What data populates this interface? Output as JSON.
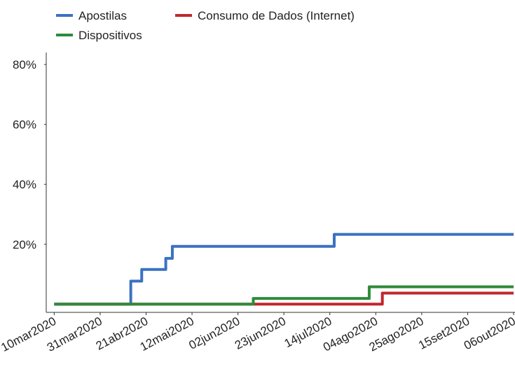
{
  "chart_data": {
    "type": "step-line",
    "series": [
      {
        "name": "Apostilas",
        "color": "#3b71c1",
        "x": [
          "2020-03-10",
          "2020-04-14",
          "2020-04-14",
          "2020-04-19",
          "2020-04-19",
          "2020-04-30",
          "2020-04-30",
          "2020-05-03",
          "2020-05-03",
          "2020-07-16",
          "2020-07-16",
          "2020-10-06"
        ],
        "values": [
          0,
          0,
          7.7,
          7.7,
          11.6,
          11.6,
          15.3,
          15.3,
          19.3,
          19.3,
          23.3,
          23.3
        ]
      },
      {
        "name": "Consumo de Dados (Internet)",
        "color": "#c0272d",
        "x": [
          "2020-03-10",
          "2020-08-07",
          "2020-08-07",
          "2020-10-06"
        ],
        "values": [
          0,
          0,
          3.7,
          3.7
        ]
      },
      {
        "name": "Dispositivos",
        "color": "#2e8b3a",
        "x": [
          "2020-03-10",
          "2020-06-09",
          "2020-06-09",
          "2020-08-01",
          "2020-08-01",
          "2020-10-06"
        ],
        "values": [
          0,
          0,
          1.9,
          1.9,
          5.8,
          5.8
        ]
      }
    ],
    "xlim": [
      "2020-03-07",
      "2020-10-06"
    ],
    "xticks": [
      {
        "value": "2020-03-10",
        "label": "10mar2020"
      },
      {
        "value": "2020-03-31",
        "label": "31mar2020"
      },
      {
        "value": "2020-04-21",
        "label": "21abr2020"
      },
      {
        "value": "2020-05-12",
        "label": "12mai2020"
      },
      {
        "value": "2020-06-02",
        "label": "02jun2020"
      },
      {
        "value": "2020-06-23",
        "label": "23jun2020"
      },
      {
        "value": "2020-07-14",
        "label": "14jul2020"
      },
      {
        "value": "2020-08-04",
        "label": "04ago2020"
      },
      {
        "value": "2020-08-25",
        "label": "25ago2020"
      },
      {
        "value": "2020-09-15",
        "label": "15set2020"
      },
      {
        "value": "2020-10-06",
        "label": "06out2020"
      }
    ],
    "ylim": [
      -2.5,
      84
    ],
    "yticks": [
      {
        "value": 20,
        "label": "20%"
      },
      {
        "value": 40,
        "label": "40%"
      },
      {
        "value": 60,
        "label": "60%"
      },
      {
        "value": 80,
        "label": "80%"
      }
    ],
    "draw_order": [
      0,
      1,
      2
    ]
  }
}
